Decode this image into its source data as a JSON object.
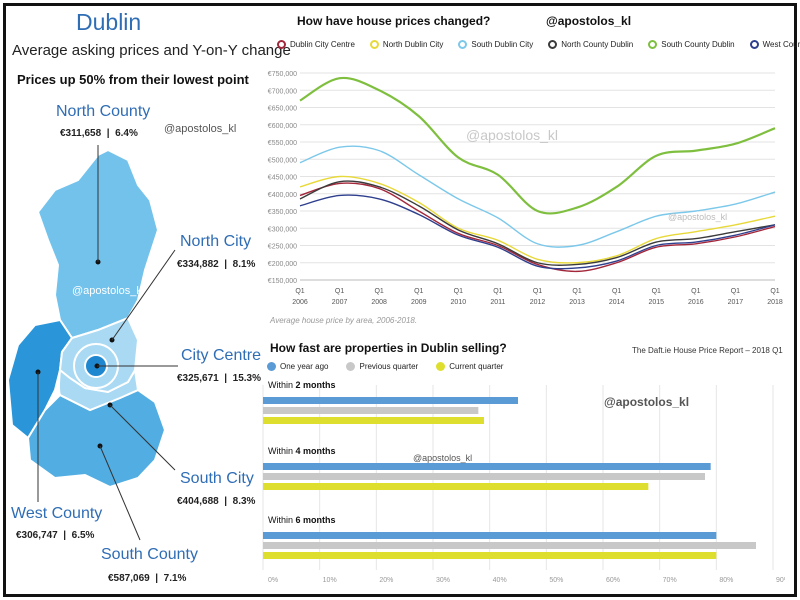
{
  "header": {
    "title": "Dublin",
    "subtitle": "Average asking prices and Y-on-Y change",
    "headline": "Prices up 50% from their lowest point"
  },
  "watermark": "@apostolos_kl",
  "map": {
    "colors": {
      "north_county": "#72c2ec",
      "north_city": "#a9d9f3",
      "city_centre": "#1f87cf",
      "south_city": "#a9d9f3",
      "south_county": "#52aee2",
      "west_county": "#2a95d8"
    },
    "areas": [
      {
        "key": "north_county",
        "name": "North County",
        "price": "€311,658",
        "change": "6.4%"
      },
      {
        "key": "north_city",
        "name": "North City",
        "price": "€334,882",
        "change": "8.1%"
      },
      {
        "key": "city_centre",
        "name": "City Centre",
        "price": "€325,671",
        "change": "15.3%"
      },
      {
        "key": "south_city",
        "name": "South City",
        "price": "€404,688",
        "change": "8.3%"
      },
      {
        "key": "west_county",
        "name": "West County",
        "price": "€306,747",
        "change": "6.5%"
      },
      {
        "key": "south_county",
        "name": "South County",
        "price": "€587,069",
        "change": "7.1%"
      }
    ]
  },
  "line_section": {
    "title": "How have house prices changed?",
    "note": "Average house price by area, 2006-2018."
  },
  "bar_section": {
    "title": "How fast are properties in Dublin selling?",
    "source": "The Daft.ie House Price Report – 2018 Q1"
  },
  "chart_data": [
    {
      "type": "line",
      "title": "How have house prices changed?",
      "x": [
        "Q1 2006",
        "Q1 2007",
        "Q1 2008",
        "Q1 2009",
        "Q1 2010",
        "Q1 2011",
        "Q1 2012",
        "Q1 2013",
        "Q1 2014",
        "Q1 2015",
        "Q1 2016",
        "Q1 2017",
        "Q1 2018"
      ],
      "x_tick_labels": [
        [
          "Q1",
          "2006"
        ],
        [
          "Q1",
          "2007"
        ],
        [
          "Q1",
          "2008"
        ],
        [
          "Q1",
          "2009"
        ],
        [
          "Q1",
          "2010"
        ],
        [
          "Q1",
          "2011"
        ],
        [
          "Q1",
          "2012"
        ],
        [
          "Q1",
          "2013"
        ],
        [
          "Q1",
          "2014"
        ],
        [
          "Q1",
          "2015"
        ],
        [
          "Q1",
          "2016"
        ],
        [
          "Q1",
          "2017"
        ],
        [
          "Q1",
          "2018"
        ]
      ],
      "y_ticks": [
        "€150,000",
        "€200,000",
        "€250,000",
        "€300,000",
        "€350,000",
        "€400,000",
        "€450,000",
        "€500,000",
        "€550,000",
        "€600,000",
        "€650,000",
        "€700,000",
        "€750,000"
      ],
      "ylim": [
        150000,
        750000
      ],
      "grid": true,
      "legend": "top",
      "series": [
        {
          "name": "Dublin City Centre",
          "color": "#a3273a",
          "values": [
            395000,
            430000,
            415000,
            350000,
            285000,
            250000,
            195000,
            175000,
            200000,
            245000,
            255000,
            275000,
            305000
          ]
        },
        {
          "name": "North Dublin City",
          "color": "#e8d93a",
          "values": [
            420000,
            450000,
            430000,
            375000,
            300000,
            265000,
            210000,
            200000,
            220000,
            270000,
            290000,
            310000,
            335000
          ]
        },
        {
          "name": "South Dublin City",
          "color": "#7cc8ea",
          "values": [
            490000,
            535000,
            525000,
            455000,
            385000,
            330000,
            255000,
            250000,
            290000,
            335000,
            350000,
            370000,
            405000
          ]
        },
        {
          "name": "North County Dublin",
          "color": "#3b3b3b",
          "values": [
            385000,
            435000,
            420000,
            365000,
            295000,
            255000,
            200000,
            195000,
            215000,
            260000,
            270000,
            290000,
            310000
          ]
        },
        {
          "name": "South County Dublin",
          "color": "#7fbf3f",
          "values": [
            670000,
            735000,
            700000,
            625000,
            505000,
            455000,
            350000,
            360000,
            420000,
            510000,
            525000,
            545000,
            590000
          ]
        },
        {
          "name": "West County Dublin",
          "color": "#2e3f8e",
          "values": [
            365000,
            395000,
            385000,
            340000,
            280000,
            245000,
            190000,
            185000,
            205000,
            250000,
            260000,
            280000,
            310000
          ]
        }
      ]
    },
    {
      "type": "bar",
      "orientation": "horizontal",
      "title": "How fast are properties in Dublin selling?",
      "categories": [
        "Within 2 months",
        "Within 4 months",
        "Within 6 months"
      ],
      "category_parts": [
        [
          "Within ",
          "2 months"
        ],
        [
          "Within ",
          "4 months"
        ],
        [
          "Within ",
          "6 months"
        ]
      ],
      "series": [
        {
          "name": "One year ago",
          "color": "#5b9bd5",
          "values": [
            45,
            79,
            80
          ]
        },
        {
          "name": "Previous quarter",
          "color": "#c8c8c8",
          "values": [
            38,
            78,
            87
          ]
        },
        {
          "name": "Current quarter",
          "color": "#dede2e",
          "values": [
            39,
            68,
            80
          ]
        }
      ],
      "x_ticks": [
        "0%",
        "10%",
        "20%",
        "30%",
        "40%",
        "50%",
        "60%",
        "70%",
        "80%",
        "90%"
      ],
      "xlim": [
        0,
        90
      ],
      "legend": "top-left"
    }
  ]
}
